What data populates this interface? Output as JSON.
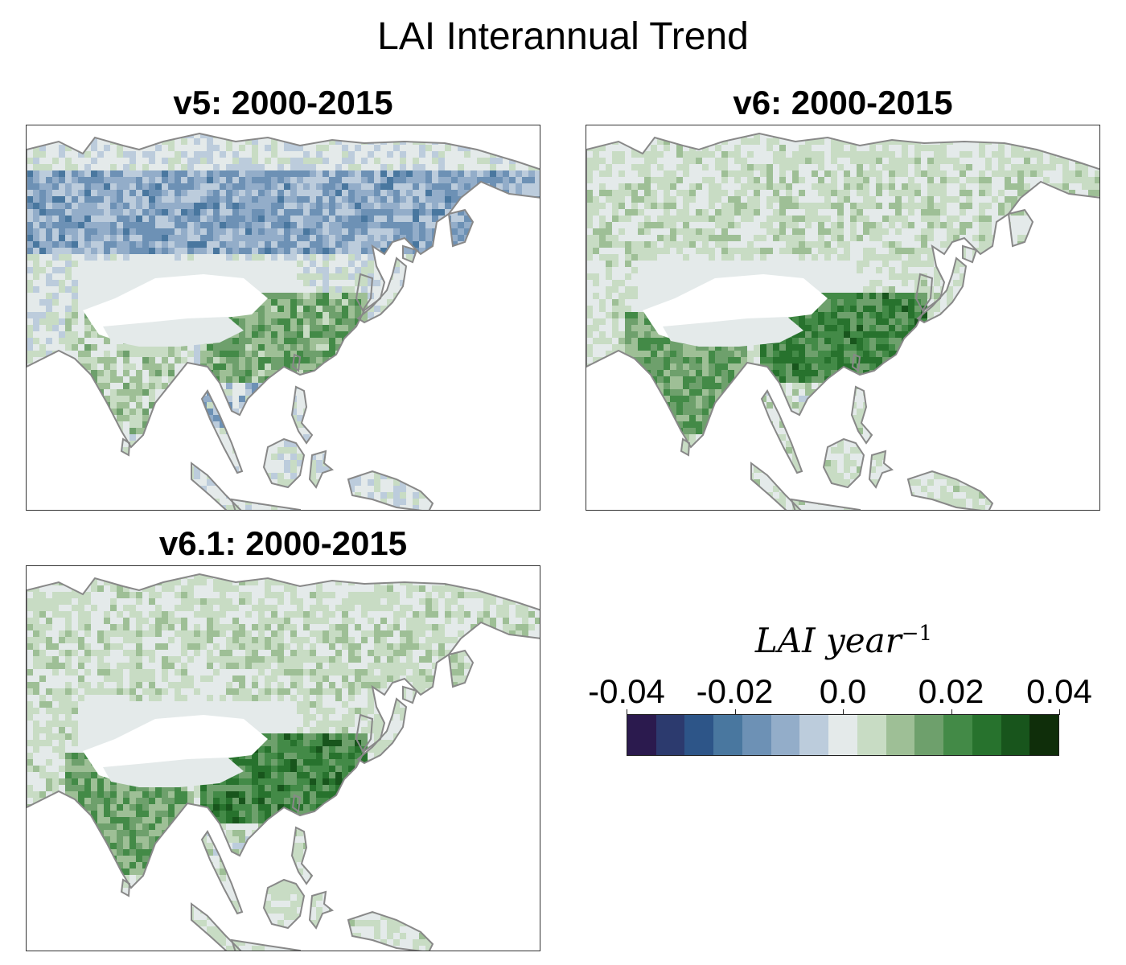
{
  "figure": {
    "title": "LAI Interannual Trend"
  },
  "panels": [
    {
      "title": "v5: 2000-2015",
      "pattern": "browning-north"
    },
    {
      "title": "v6: 2000-2015",
      "pattern": "greening"
    },
    {
      "title": "v6.1: 2000-2015",
      "pattern": "greening"
    }
  ],
  "colorbar": {
    "label_base": "LAI year",
    "label_exp": "−1",
    "ticks": [
      "-0.04",
      "-0.02",
      "0.0",
      "0.02",
      "0.04"
    ],
    "tick_values": [
      -0.04,
      -0.02,
      0.0,
      0.02,
      0.04
    ],
    "range": [
      -0.04,
      0.04
    ],
    "colors": [
      "#2b1a4e",
      "#2c3a6e",
      "#2d5588",
      "#49779f",
      "#6d91b5",
      "#93adc9",
      "#bcccdc",
      "#e4eaea",
      "#c8dcc4",
      "#9ebf96",
      "#6ea06c",
      "#438a47",
      "#27722d",
      "#18551c",
      "#0f2e0a"
    ]
  },
  "colors": {
    "land_neutral": "#e4eaea",
    "coastline": "#888888",
    "frame": "#333333"
  }
}
